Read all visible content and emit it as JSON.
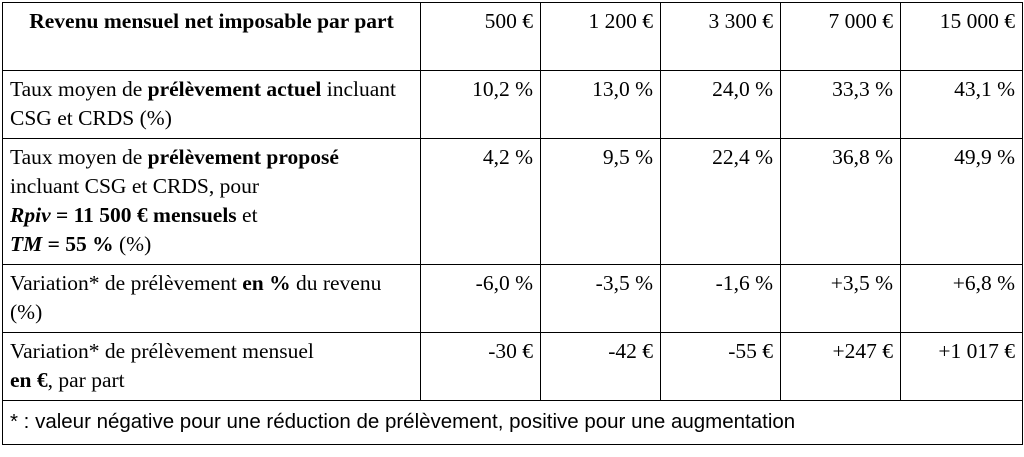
{
  "header": {
    "row_label": "Revenu mensuel net imposable par part",
    "columns": [
      "500 €",
      "1 200 €",
      "3 300 €",
      "7 000 €",
      "15 000 €"
    ]
  },
  "rows": [
    {
      "label_parts": [
        "Taux moyen de ",
        "prélèvement actuel",
        " incluant CSG et CRDS (%)"
      ],
      "values": [
        "10,2 %",
        "13,0 %",
        "24,0 %",
        "33,3 %",
        "43,1 %"
      ]
    },
    {
      "label_parts": [
        "Taux moyen de ",
        "prélèvement proposé",
        " incluant CSG et CRDS, pour ",
        "Rpiv",
        " = 11 500 € mensuels",
        " et ",
        "TM",
        " = 55 %",
        " (%)"
      ],
      "values": [
        "4,2 %",
        "9,5 %",
        "22,4 %",
        "36,8 %",
        "49,9 %"
      ]
    },
    {
      "label_parts": [
        "Variation* de prélèvement ",
        "en %",
        " du revenu (%)"
      ],
      "values": [
        "-6,0 %",
        "-3,5 %",
        "-1,6 %",
        "+3,5 %",
        "+6,8 %"
      ]
    },
    {
      "label_parts": [
        "Variation* de prélèvement mensuel ",
        "en €",
        ", par part"
      ],
      "values": [
        "-30 €",
        "-42 €",
        "-55 €",
        "+247 €",
        "+1 017 €"
      ]
    }
  ],
  "footnote": "* : valeur négative pour une réduction de prélèvement, positive pour une augmentation"
}
